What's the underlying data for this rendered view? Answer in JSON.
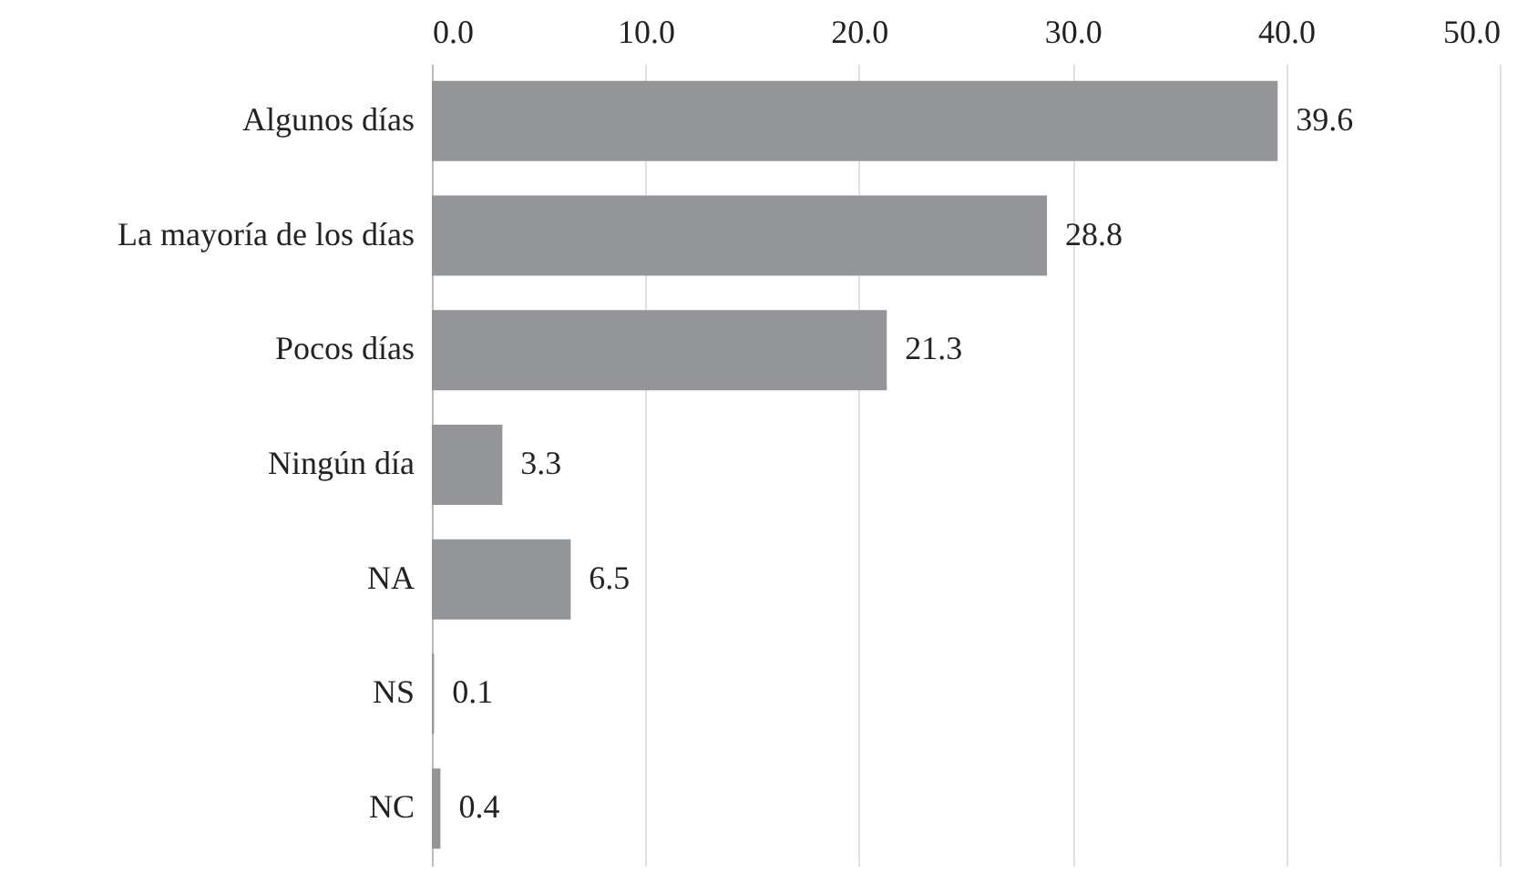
{
  "chart_data": {
    "type": "bar",
    "orientation": "horizontal",
    "categories": [
      "Algunos días",
      "La mayoría de los días",
      "Pocos días",
      "Ningún día",
      "NA",
      "NS",
      "NC"
    ],
    "values": [
      39.6,
      28.8,
      21.3,
      3.3,
      6.5,
      0.1,
      0.4
    ],
    "color": "#939598",
    "xlim": [
      0,
      50
    ],
    "xticks": [
      {
        "value": 0,
        "label": "0.0"
      },
      {
        "value": 10,
        "label": "10.0"
      },
      {
        "value": 20,
        "label": "20.0"
      },
      {
        "value": 30,
        "label": "30.0"
      },
      {
        "value": 40,
        "label": "40.0"
      },
      {
        "value": 50,
        "label": "50.0"
      }
    ],
    "grid": "x",
    "data_labels": true
  }
}
